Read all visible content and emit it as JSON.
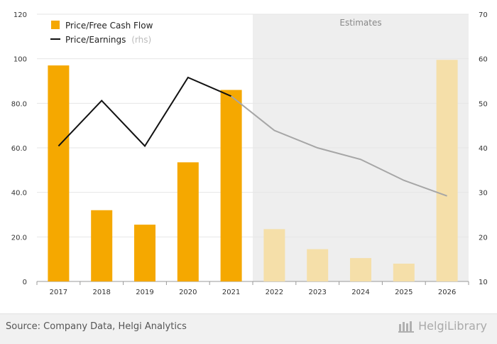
{
  "chart_data": {
    "type": "bar+line",
    "categories": [
      "2017",
      "2018",
      "2019",
      "2020",
      "2021",
      "2022",
      "2023",
      "2024",
      "2025",
      "2026"
    ],
    "estimate_start": "2022",
    "estimates_label": "Estimates",
    "series": [
      {
        "name": "Price/Free Cash Flow",
        "type": "bar",
        "axis": "left",
        "values": [
          97,
          32,
          25.5,
          53.5,
          86,
          23.5,
          14.5,
          10.5,
          8,
          99.5
        ]
      },
      {
        "name": "Price/Earnings",
        "name_suffix": "(rhs)",
        "type": "line",
        "axis": "right",
        "values": [
          40.4,
          50.6,
          40.4,
          55.8,
          51.6,
          43.9,
          40.0,
          37.4,
          32.7,
          29.2
        ]
      }
    ],
    "y_left": {
      "min": 0,
      "max": 120,
      "ticks": [
        "0",
        "20.0",
        "40.0",
        "60.0",
        "80.0",
        "100",
        "120"
      ]
    },
    "y_right": {
      "min": 10,
      "max": 70,
      "ticks": [
        "10",
        "20",
        "30",
        "40",
        "50",
        "60",
        "70"
      ]
    },
    "grid": true,
    "legend_position": "top-left",
    "colors": {
      "bar": "#F5A800",
      "bar_estimate": "#F5DFA9",
      "line": "#111111",
      "line_estimate": "#A6A6A6",
      "estimate_bg": "#EEEEEE",
      "grid": "#e6e6e6"
    }
  },
  "footer": {
    "source": "Source: Company Data, Helgi Analytics",
    "logo_text": "HelgiLibrary"
  }
}
